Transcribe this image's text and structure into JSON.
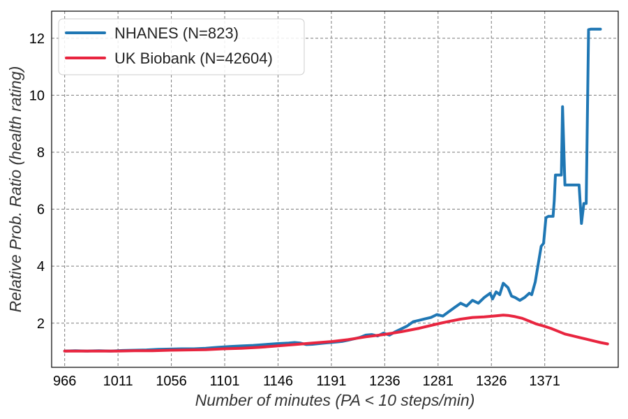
{
  "chart_data": {
    "type": "line",
    "title": "",
    "xlabel": "Number of minutes (PA < 10 steps/min)",
    "ylabel": "Relative Prob. Ratio (health rating)",
    "xlim": [
      955,
      1433
    ],
    "ylim": [
      0.45,
      12.95
    ],
    "xticks": [
      966,
      1011,
      1056,
      1101,
      1146,
      1191,
      1236,
      1281,
      1326,
      1371
    ],
    "yticks": [
      2,
      4,
      6,
      8,
      10,
      12
    ],
    "grid": true,
    "legend_position": "top-left",
    "series": [
      {
        "name": "NHANES (N=823)",
        "color": "#1f77b4",
        "x": [
          966,
          975,
          985,
          995,
          1005,
          1015,
          1025,
          1035,
          1045,
          1055,
          1065,
          1075,
          1085,
          1095,
          1105,
          1115,
          1125,
          1135,
          1145,
          1155,
          1160,
          1165,
          1170,
          1175,
          1180,
          1185,
          1190,
          1195,
          1200,
          1205,
          1210,
          1215,
          1220,
          1225,
          1230,
          1235,
          1240,
          1245,
          1250,
          1255,
          1260,
          1265,
          1270,
          1275,
          1280,
          1285,
          1290,
          1295,
          1300,
          1305,
          1310,
          1315,
          1320,
          1325,
          1327,
          1330,
          1333,
          1336,
          1340,
          1343,
          1346,
          1350,
          1354,
          1358,
          1360,
          1363,
          1366,
          1368,
          1370,
          1372,
          1374,
          1376,
          1378,
          1379,
          1380,
          1381,
          1382,
          1383,
          1384,
          1385,
          1386,
          1388,
          1390,
          1392,
          1394,
          1396,
          1397,
          1398,
          1400,
          1402,
          1404,
          1406,
          1408,
          1410,
          1412,
          1414,
          1416,
          1418
        ],
        "y": [
          1.02,
          1.03,
          1.02,
          1.03,
          1.02,
          1.04,
          1.05,
          1.06,
          1.08,
          1.09,
          1.1,
          1.1,
          1.12,
          1.15,
          1.18,
          1.2,
          1.22,
          1.25,
          1.28,
          1.3,
          1.32,
          1.3,
          1.25,
          1.26,
          1.28,
          1.3,
          1.32,
          1.34,
          1.36,
          1.4,
          1.45,
          1.5,
          1.58,
          1.6,
          1.55,
          1.65,
          1.58,
          1.7,
          1.8,
          1.9,
          2.05,
          2.1,
          2.15,
          2.2,
          2.3,
          2.25,
          2.4,
          2.55,
          2.7,
          2.6,
          2.8,
          2.7,
          2.9,
          3.05,
          2.85,
          3.1,
          3.0,
          3.4,
          3.25,
          2.95,
          2.9,
          2.8,
          2.9,
          3.05,
          3.0,
          3.45,
          4.2,
          4.7,
          4.8,
          5.7,
          5.75,
          5.75,
          5.75,
          6.3,
          7.2,
          7.2,
          7.2,
          7.2,
          7.2,
          7.2,
          9.6,
          6.85,
          6.85,
          6.85,
          6.85,
          6.85,
          6.85,
          6.85,
          6.85,
          5.5,
          6.2,
          6.2,
          12.3,
          12.32,
          12.32,
          12.32,
          12.32,
          12.32
        ]
      },
      {
        "name": "UK Biobank (N=42604)",
        "color": "#e8253f",
        "x": [
          966,
          980,
          995,
          1010,
          1025,
          1040,
          1055,
          1070,
          1085,
          1100,
          1115,
          1130,
          1145,
          1160,
          1175,
          1190,
          1205,
          1220,
          1235,
          1250,
          1265,
          1280,
          1290,
          1300,
          1310,
          1320,
          1330,
          1336,
          1340,
          1346,
          1352,
          1358,
          1364,
          1370,
          1376,
          1382,
          1388,
          1394,
          1400,
          1406,
          1412,
          1418,
          1424
        ],
        "y": [
          1.02,
          1.02,
          1.02,
          1.02,
          1.03,
          1.03,
          1.05,
          1.06,
          1.07,
          1.1,
          1.12,
          1.15,
          1.2,
          1.25,
          1.3,
          1.35,
          1.42,
          1.52,
          1.6,
          1.7,
          1.82,
          1.97,
          2.06,
          2.14,
          2.2,
          2.22,
          2.26,
          2.28,
          2.27,
          2.23,
          2.17,
          2.07,
          1.97,
          1.9,
          1.82,
          1.72,
          1.62,
          1.56,
          1.5,
          1.44,
          1.38,
          1.32,
          1.27
        ]
      }
    ]
  }
}
